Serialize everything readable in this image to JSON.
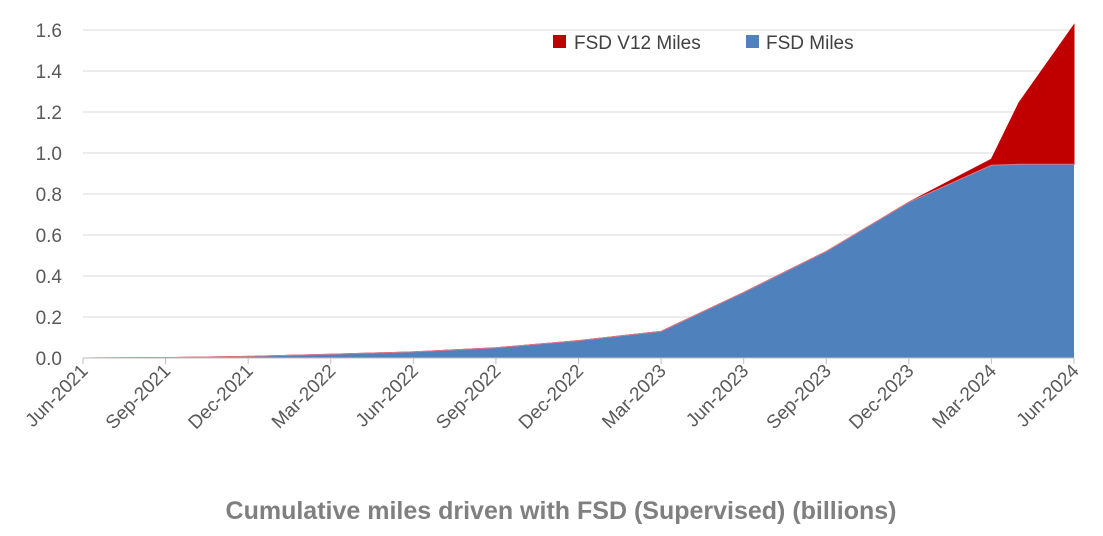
{
  "chart_data": {
    "type": "area",
    "stacked": true,
    "title": "",
    "xlabel": "Cumulative miles driven with FSD (Supervised) (billions)",
    "ylabel": "",
    "ylim": [
      0,
      1.6
    ],
    "y_ticks": [
      "0.0",
      "0.2",
      "0.4",
      "0.6",
      "0.8",
      "1.0",
      "1.2",
      "1.4",
      "1.6"
    ],
    "x_ticks": [
      "Jun-2021",
      "Sep-2021",
      "Dec-2021",
      "Mar-2022",
      "Jun-2022",
      "Sep-2022",
      "Dec-2022",
      "Mar-2023",
      "Jun-2023",
      "Sep-2023",
      "Dec-2023",
      "Mar-2024",
      "Jun-2024"
    ],
    "grid": true,
    "legend_position": "top-right",
    "x": [
      "Jun-2021",
      "Sep-2021",
      "Dec-2021",
      "Mar-2022",
      "Jun-2022",
      "Sep-2022",
      "Dec-2022",
      "Mar-2023",
      "Jun-2023",
      "Sep-2023",
      "Dec-2023",
      "Mar-2024",
      "Apr-2024",
      "May-2024",
      "Jun-2024"
    ],
    "series": [
      {
        "name": "FSD Miles",
        "color": "#4f81bd",
        "values": [
          0.0,
          0.002,
          0.008,
          0.018,
          0.03,
          0.05,
          0.085,
          0.13,
          0.32,
          0.52,
          0.76,
          0.94,
          0.945,
          0.945,
          0.945
        ]
      },
      {
        "name": "FSD V12 Miles",
        "color": "#c00000",
        "values": [
          0,
          0,
          0,
          0,
          0,
          0,
          0,
          0,
          0,
          0,
          0,
          0.03,
          0.3,
          0.49,
          0.68
        ]
      }
    ]
  }
}
